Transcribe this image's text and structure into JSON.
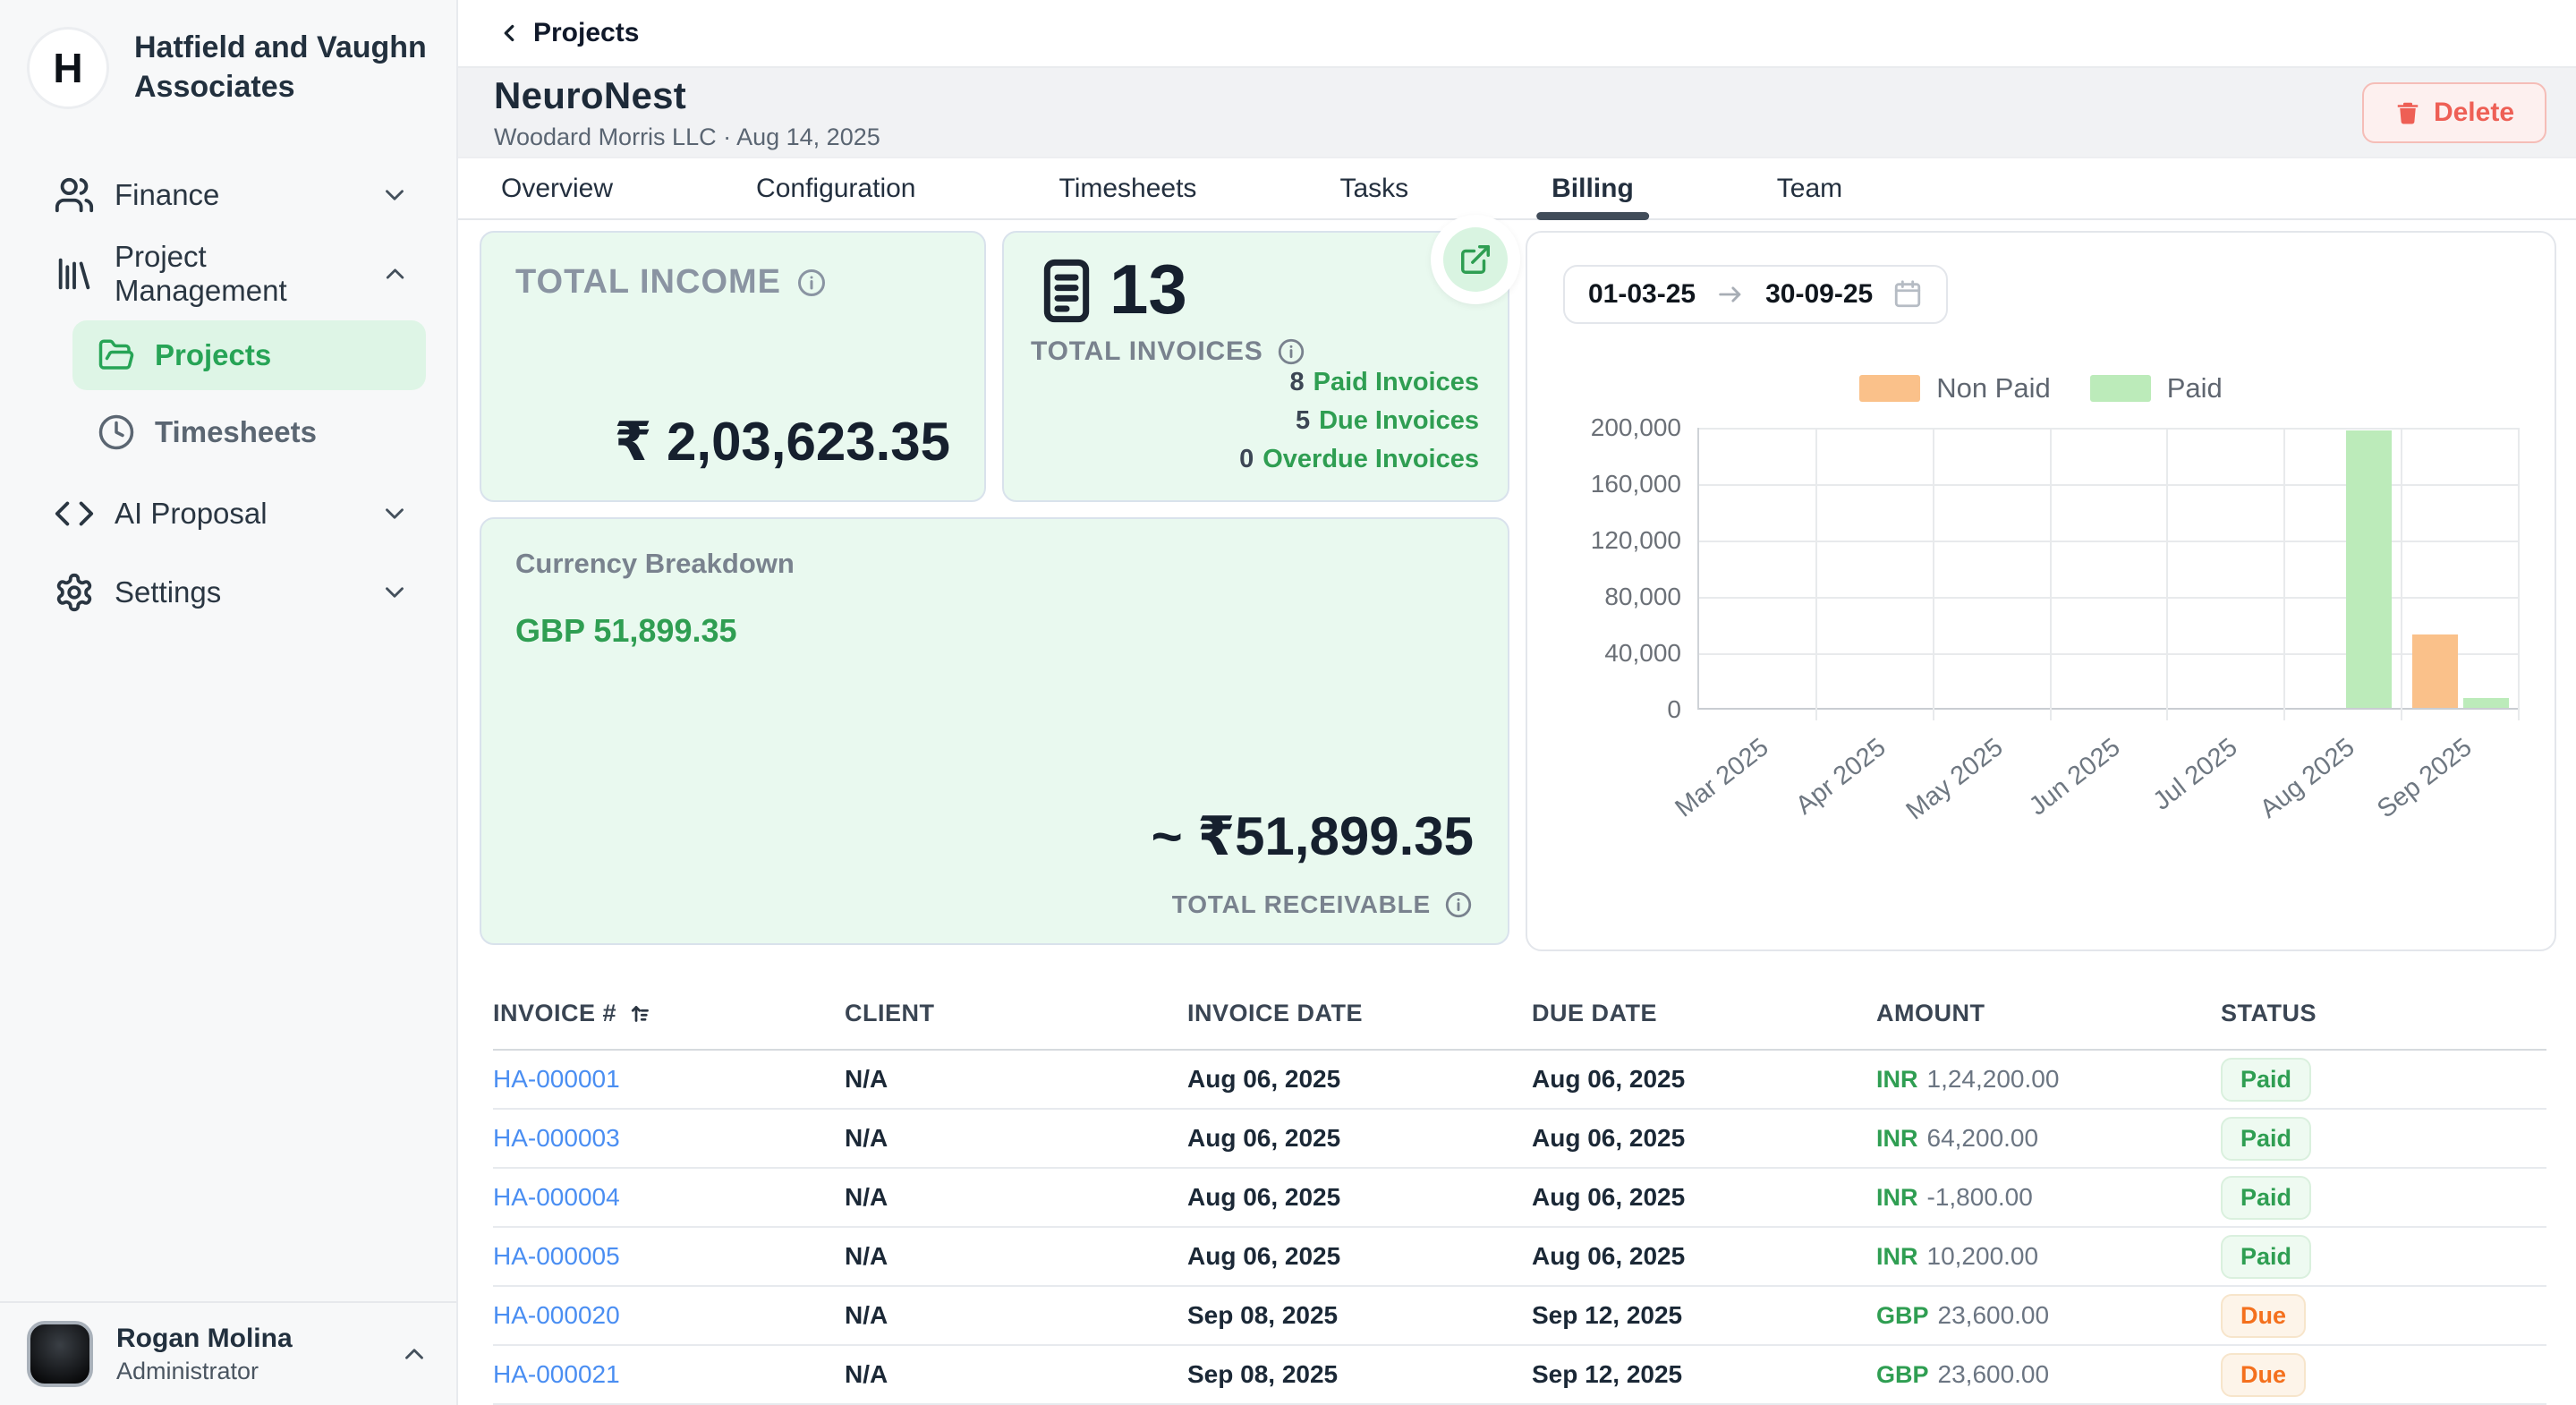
{
  "org": {
    "name": "Hatfield and Vaughn Associates",
    "logo_letter": "H"
  },
  "sidebar": {
    "items": [
      {
        "label": "Finance",
        "icon": "users-icon",
        "chevron": "down"
      },
      {
        "label": "Project Management",
        "icon": "library-icon",
        "chevron": "up"
      },
      {
        "label": "Projects",
        "icon": "folder-open-icon",
        "active": true
      },
      {
        "label": "Timesheets",
        "icon": "clock-icon"
      },
      {
        "label": "AI Proposal",
        "icon": "code-icon",
        "chevron": "down"
      },
      {
        "label": "Settings",
        "icon": "gear-icon",
        "chevron": "down"
      }
    ],
    "user": {
      "name": "Rogan Molina",
      "role": "Administrator"
    }
  },
  "header": {
    "breadcrumb": "Projects",
    "project_name": "NeuroNest",
    "project_meta": "Woodard Morris LLC · Aug 14, 2025",
    "delete_label": "Delete"
  },
  "tabs": {
    "items": [
      "Overview",
      "Configuration",
      "Timesheets",
      "Tasks",
      "Billing",
      "Team"
    ],
    "active": "Billing"
  },
  "cards": {
    "total_income": {
      "label": "TOTAL INCOME",
      "amount": "₹ 2,03,623.35"
    },
    "invoices": {
      "count": "13",
      "label": "TOTAL INVOICES",
      "lines": [
        {
          "num": "8",
          "text": "Paid Invoices"
        },
        {
          "num": "5",
          "text": "Due Invoices"
        },
        {
          "num": "0",
          "text": "Overdue Invoices"
        }
      ]
    },
    "currency": {
      "title": "Currency Breakdown",
      "gbp": "GBP 51,899.35",
      "approx": "~ ₹51,899.35",
      "receivable_label": "TOTAL RECEIVABLE"
    }
  },
  "date_range": {
    "from": "01-03-25",
    "to": "30-09-25"
  },
  "chart_data": {
    "type": "bar",
    "title": "",
    "categories": [
      "Mar 2025",
      "Apr 2025",
      "May 2025",
      "Jun 2025",
      "Jul 2025",
      "Aug 2025",
      "Sep 2025"
    ],
    "series": [
      {
        "name": "Non Paid",
        "color": "#fac18a",
        "values": [
          0,
          0,
          0,
          0,
          0,
          0,
          51899
        ]
      },
      {
        "name": "Paid",
        "color": "#bcebba",
        "values": [
          0,
          0,
          0,
          0,
          0,
          196800,
          6823
        ]
      }
    ],
    "ylim": [
      0,
      200000
    ],
    "ytick": 40000,
    "xlabel": "",
    "ylabel": "",
    "grid": true,
    "legend_position": "top"
  },
  "table": {
    "columns": [
      "INVOICE #",
      "CLIENT",
      "INVOICE DATE",
      "DUE DATE",
      "AMOUNT",
      "STATUS"
    ],
    "rows": [
      {
        "invoice": "HA-000001",
        "client": "N/A",
        "invoice_date": "Aug 06, 2025",
        "due_date": "Aug 06, 2025",
        "currency": "INR",
        "amount": "1,24,200.00",
        "status": "Paid"
      },
      {
        "invoice": "HA-000003",
        "client": "N/A",
        "invoice_date": "Aug 06, 2025",
        "due_date": "Aug 06, 2025",
        "currency": "INR",
        "amount": "64,200.00",
        "status": "Paid"
      },
      {
        "invoice": "HA-000004",
        "client": "N/A",
        "invoice_date": "Aug 06, 2025",
        "due_date": "Aug 06, 2025",
        "currency": "INR",
        "amount": "-1,800.00",
        "status": "Paid"
      },
      {
        "invoice": "HA-000005",
        "client": "N/A",
        "invoice_date": "Aug 06, 2025",
        "due_date": "Aug 06, 2025",
        "currency": "INR",
        "amount": "10,200.00",
        "status": "Paid"
      },
      {
        "invoice": "HA-000020",
        "client": "N/A",
        "invoice_date": "Sep 08, 2025",
        "due_date": "Sep 12, 2025",
        "currency": "GBP",
        "amount": "23,600.00",
        "status": "Due"
      },
      {
        "invoice": "HA-000021",
        "client": "N/A",
        "invoice_date": "Sep 08, 2025",
        "due_date": "Sep 12, 2025",
        "currency": "GBP",
        "amount": "23,600.00",
        "status": "Due"
      }
    ]
  }
}
